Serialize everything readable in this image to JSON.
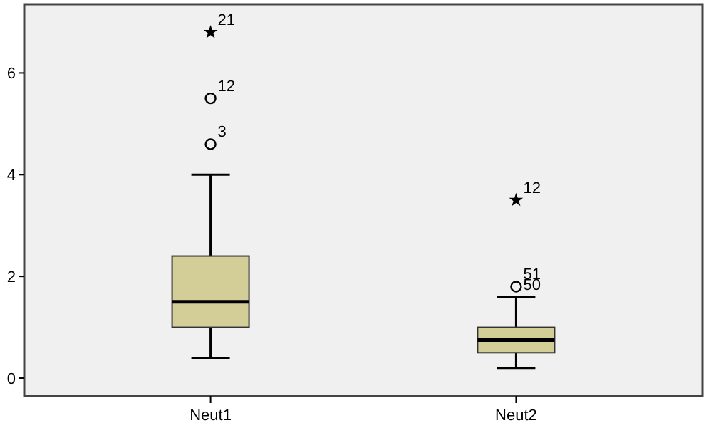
{
  "chart_data": {
    "type": "box",
    "categories": [
      "Neut1",
      "Neut2"
    ],
    "ylim": [
      -0.35,
      7.35
    ],
    "yticks": [
      0,
      2,
      4,
      6
    ],
    "grid": false,
    "series": [
      {
        "color": "#d3ce97",
        "boxes": [
          {
            "low": 0.4,
            "q1": 1.0,
            "median": 1.5,
            "q3": 2.4,
            "high": 4.0
          },
          {
            "low": 0.2,
            "q1": 0.5,
            "median": 0.75,
            "q3": 1.0,
            "high": 1.6
          }
        ]
      },
      {
        "type": "scatter",
        "marker": "circle",
        "color": "#000000",
        "x": [
          "Neut1",
          "Neut1",
          "Neut2"
        ],
        "values": [
          4.6,
          5.5,
          1.8
        ]
      },
      {
        "type": "scatter",
        "marker": "star",
        "color": "#000000",
        "x": [
          "Neut1",
          "Neut2"
        ],
        "values": [
          6.8,
          3.5
        ]
      }
    ],
    "annotations": [
      {
        "text": "21",
        "x": "Neut1",
        "y": 6.8
      },
      {
        "text": "12",
        "x": "Neut1",
        "y": 5.5
      },
      {
        "text": "3",
        "x": "Neut1",
        "y": 4.6
      },
      {
        "text": "12",
        "x": "Neut2",
        "y": 3.5
      },
      {
        "text": "51",
        "x": "Neut2",
        "y": 1.8
      },
      {
        "text": "50",
        "x": "Neut2",
        "y": 1.6
      }
    ]
  }
}
